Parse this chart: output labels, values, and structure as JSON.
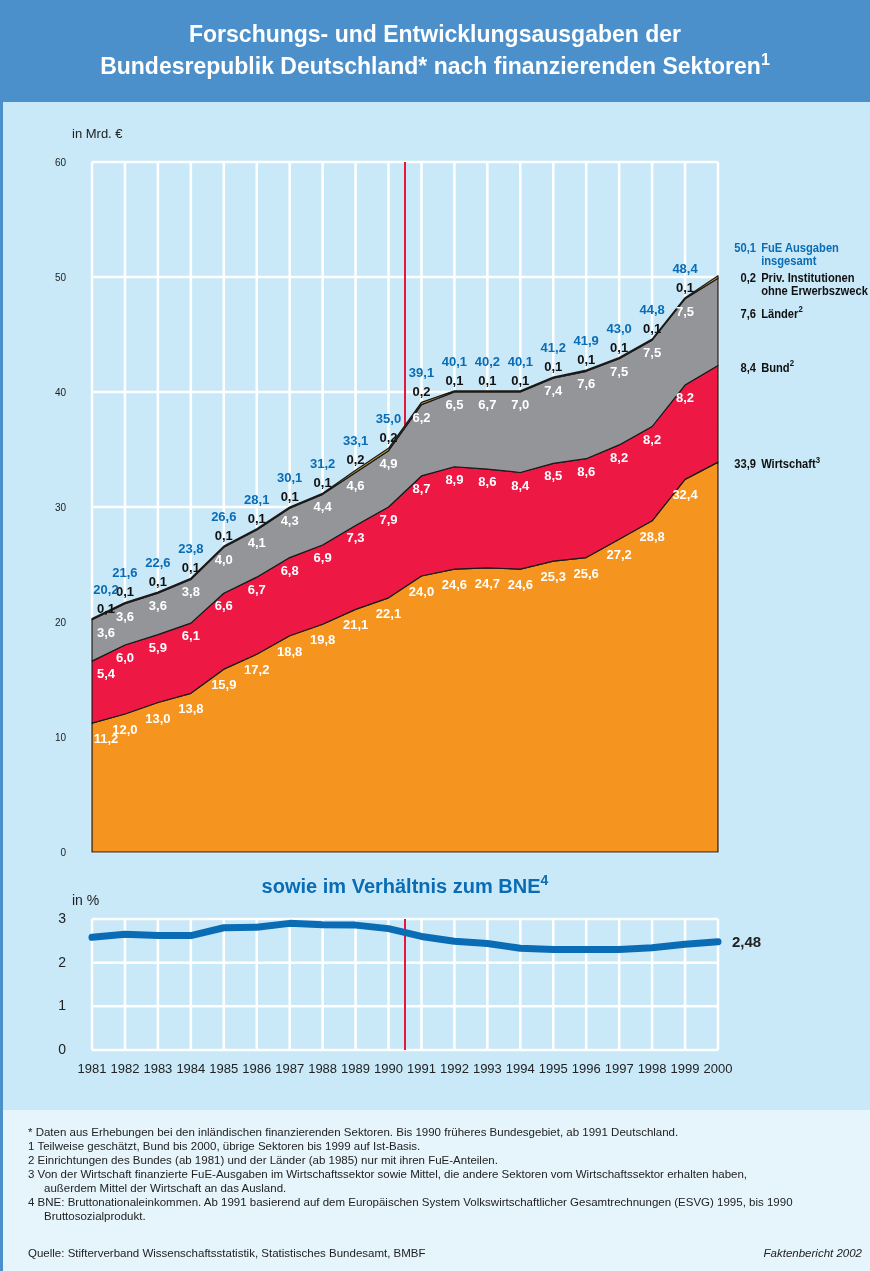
{
  "chart_data": [
    {
      "type": "area",
      "title": "Forschungs- und Entwicklungsausgaben der Bundesrepublik Deutschland* nach finanzierenden Sektoren$^{1}$",
      "ylabel": "in Mrd. €",
      "stacked": true,
      "x": [
        1981,
        1982,
        1983,
        1984,
        1985,
        1986,
        1987,
        1988,
        1989,
        1990,
        1991,
        1992,
        1993,
        1994,
        1995,
        1996,
        1997,
        1998,
        1999,
        2000
      ],
      "xlim": [
        1981,
        2000
      ],
      "xticks": [
        1981,
        1982,
        1983,
        1984,
        1985,
        1986,
        1987,
        1988,
        1989,
        1990,
        1991,
        1992,
        1993,
        1994,
        1995,
        1996,
        1997,
        1998,
        1999,
        2000
      ],
      "ylim": [
        0,
        60
      ],
      "yticks": [
        0,
        10,
        20,
        30,
        40,
        50,
        60
      ],
      "tick_labels": "y",
      "grid": true,
      "series": [
        {
          "name": "Wirtschaft$^{3}$",
          "color": "#f5941e",
          "values": [
            11.2,
            12.0,
            13.0,
            13.8,
            15.9,
            17.2,
            18.8,
            19.8,
            21.1,
            22.1,
            24.0,
            24.6,
            24.7,
            24.6,
            25.3,
            25.6,
            27.2,
            28.8,
            32.4,
            33.9
          ],
          "value_labels": [
            "11,2",
            "12,0",
            "13,0",
            "13,8",
            "15,9",
            "17,2",
            "18,8",
            "19,8",
            "21,1",
            "22,1",
            "24,0",
            "24,6",
            "24,7",
            "24,6",
            "25,3",
            "25,6",
            "27,2",
            "28,8",
            "32,4",
            "33,9"
          ]
        },
        {
          "name": "Bund$^{2}$",
          "color": "#ed1944",
          "values": [
            5.4,
            6.0,
            5.9,
            6.1,
            6.6,
            6.7,
            6.8,
            6.9,
            7.3,
            7.9,
            8.7,
            8.9,
            8.6,
            8.4,
            8.5,
            8.6,
            8.2,
            8.2,
            8.2,
            8.4
          ],
          "value_labels": [
            "5,4",
            "6,0",
            "5,9",
            "6,1",
            "6,6",
            "6,7",
            "6,8",
            "6,9",
            "7,3",
            "7,9",
            "8,7",
            "8,9",
            "8,6",
            "8,4",
            "8,5",
            "8,6",
            "8,2",
            "8,2",
            "8,2",
            "8,4"
          ]
        },
        {
          "name": "Länder$^{2}$",
          "color": "#939598",
          "values": [
            3.6,
            3.6,
            3.6,
            3.8,
            4.0,
            4.1,
            4.3,
            4.4,
            4.6,
            4.9,
            6.2,
            6.5,
            6.7,
            7.0,
            7.4,
            7.6,
            7.5,
            7.5,
            7.5,
            7.6
          ],
          "value_labels": [
            "3,6",
            "3,6",
            "3,6",
            "3,8",
            "4,0",
            "4,1",
            "4,3",
            "4,4",
            "4,6",
            "4,9",
            "6,2",
            "6,5",
            "6,7",
            "7,0",
            "7,4",
            "7,6",
            "7,5",
            "7,5",
            "7,5",
            "7,6"
          ]
        },
        {
          "name": "Priv. Institutionen ohne Erwerbszweck",
          "color": "#d9a941",
          "values": [
            0.1,
            0.1,
            0.1,
            0.1,
            0.1,
            0.1,
            0.1,
            0.1,
            0.2,
            0.2,
            0.2,
            0.1,
            0.1,
            0.1,
            0.1,
            0.1,
            0.1,
            0.1,
            0.1,
            0.2
          ],
          "value_labels": [
            "0,1",
            "0,1",
            "0,1",
            "0,1",
            "0,1",
            "0,1",
            "0,1",
            "0,1",
            "0,2",
            "0,2",
            "0,2",
            "0,1",
            "0,1",
            "0,1",
            "0,1",
            "0,1",
            "0,1",
            "0,1",
            "0,1",
            "0,2"
          ]
        }
      ],
      "totals": [
        "20,2",
        "21,6",
        "22,6",
        "23,8",
        "26,6",
        "28,1",
        "30,1",
        "31,2",
        "33,1",
        "35,0",
        "39,1",
        "40,1",
        "40,2",
        "40,1",
        "41,2",
        "41,9",
        "43,0",
        "44,8",
        "48,4",
        "50,1"
      ],
      "ref_lines": [
        {
          "axis": "x",
          "value": 1990.5,
          "color": "#e5173f"
        }
      ],
      "annotations": [
        "FuE Ausgaben insgesamt",
        "*  Daten aus Erhebungen bei den inländischen finanzierenden Sektoren. Bis 1990 früheres Bundesgebiet, ab 1991 Deutschland.",
        "1  Teilweise geschätzt, Bund bis 2000, übrige Sektoren bis 1999 auf Ist-Basis.",
        "2  Einrichtungen des Bundes (ab 1981) und der Länder (ab 1985) nur mit ihren FuE-Anteilen.",
        "3  Von der Wirtschaft finanzierte FuE-Ausgaben im Wirtschaftssektor sowie Mittel, die andere Sektoren vom Wirtschaftssektor erhalten haben, außerdem Mittel der Wirtschaft an das Ausland.",
        "4  BNE: Bruttonationaleinkommen. Ab 1991 basierend auf dem Europäischen System Volkswirtschaftlicher Gesamtrechnungen (ESVG) 1995, bis 1990 Bruttosozialprodukt.",
        "Quelle: Stifterverband Wissenschaftsstatistik, Statistisches Bundesamt, BMBF",
        "Faktenbericht 2002"
      ]
    },
    {
      "type": "line",
      "title": "sowie im Verhältnis zum BNE$^{4}$",
      "ylabel": "in %",
      "x": [
        1981,
        1982,
        1983,
        1984,
        1985,
        1986,
        1987,
        1988,
        1989,
        1990,
        1991,
        1992,
        1993,
        1994,
        1995,
        1996,
        1997,
        1998,
        1999,
        2000
      ],
      "xlim": [
        1981,
        2000
      ],
      "xticks": [
        1981,
        1982,
        1983,
        1984,
        1985,
        1986,
        1987,
        1988,
        1989,
        1990,
        1991,
        1992,
        1993,
        1994,
        1995,
        1996,
        1997,
        1998,
        1999,
        2000
      ],
      "ylim": [
        0,
        3
      ],
      "yticks": [
        0,
        1,
        2,
        3
      ],
      "grid": true,
      "series": [
        {
          "color": "#0a6cb4",
          "values": [
            2.58,
            2.65,
            2.62,
            2.62,
            2.8,
            2.81,
            2.9,
            2.87,
            2.86,
            2.78,
            2.6,
            2.49,
            2.44,
            2.33,
            2.3,
            2.3,
            2.3,
            2.34,
            2.42,
            2.48
          ],
          "value_labels": [
            null,
            null,
            null,
            null,
            null,
            null,
            null,
            null,
            null,
            null,
            null,
            null,
            null,
            null,
            null,
            null,
            null,
            null,
            null,
            "2,48"
          ]
        }
      ],
      "ref_lines": [
        {
          "axis": "x",
          "value": 1990.5,
          "color": "#e5173f"
        }
      ]
    }
  ]
}
